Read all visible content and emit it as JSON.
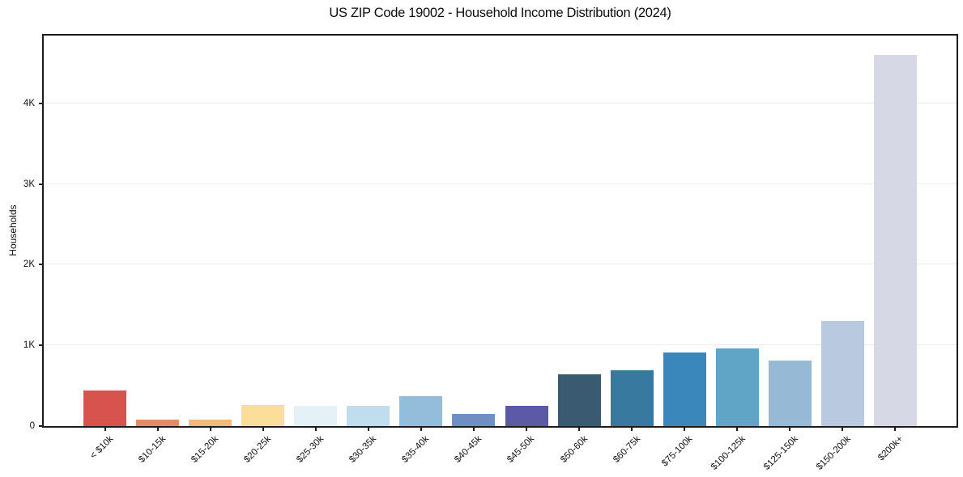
{
  "chart_data": {
    "type": "bar",
    "title": "US ZIP Code 19002 - Household Income Distribution (2024)",
    "xlabel": "",
    "ylabel": "Households",
    "ylim": [
      0,
      4840
    ],
    "yticks": [
      {
        "value": 0,
        "label": "0"
      },
      {
        "value": 1000,
        "label": "1K"
      },
      {
        "value": 2000,
        "label": "2K"
      },
      {
        "value": 3000,
        "label": "3K"
      },
      {
        "value": 4000,
        "label": "4K"
      }
    ],
    "grid": "horizontal-light",
    "legend": "none",
    "background_color": "#ffffff",
    "spine_color": "#1c1c1c",
    "gridline_color": "#ebebeb",
    "categories": [
      "< $10k",
      "$10-15k",
      "$15-20k",
      "$20-25k",
      "$25-30k",
      "$30-35k",
      "$35-40k",
      "$40-45k",
      "$45-50k",
      "$50-60k",
      "$60-75k",
      "$75-100k",
      "$100-125k",
      "$125-150k",
      "$150-200k",
      "$200k+"
    ],
    "values": [
      440,
      85,
      80,
      260,
      250,
      250,
      370,
      150,
      250,
      640,
      690,
      915,
      960,
      810,
      1300,
      4600
    ],
    "bar_colors": [
      "#d8524e",
      "#e98a66",
      "#f5bb76",
      "#fbdf99",
      "#e4f1f6",
      "#bfdded",
      "#93bddb",
      "#6e90c3",
      "#5c5aa7",
      "#395a70",
      "#38799f",
      "#3a87bb",
      "#60a5c5",
      "#96b9d6",
      "#b9c9e0",
      "#d7d8e6"
    ]
  }
}
